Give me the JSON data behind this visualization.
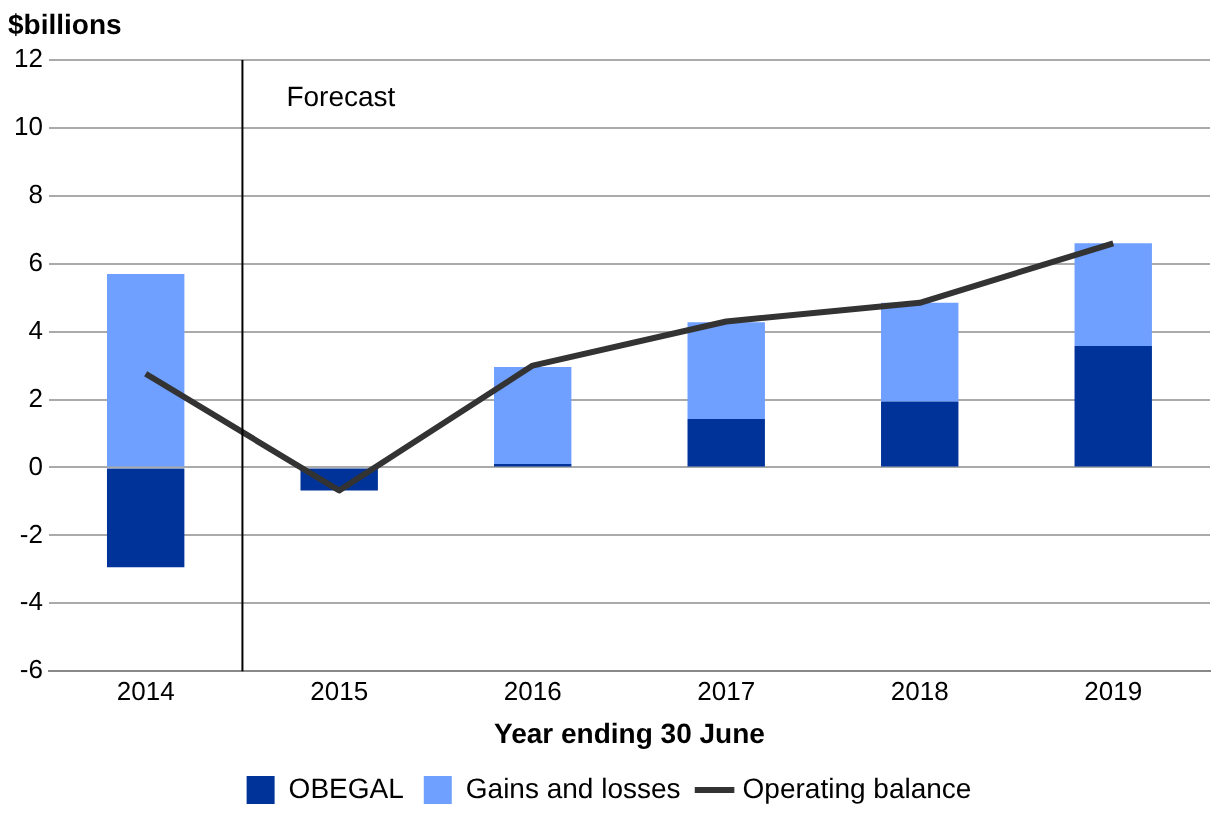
{
  "chart_data": {
    "type": "bar",
    "stacked": true,
    "xlabel": "Year ending 30 June",
    "ylabel": "$billions",
    "x": [
      2014,
      2015,
      2016,
      2017,
      2018,
      2019
    ],
    "xlim": [
      2013.5,
      2019.5
    ],
    "xticks": [
      2014,
      2015,
      2016,
      2017,
      2018,
      2019
    ],
    "ylim": [
      -6,
      12
    ],
    "yticks": [
      -6,
      -4,
      -2,
      0,
      2,
      4,
      6,
      8,
      10,
      12
    ],
    "grid": "y",
    "legend": "bottom",
    "series": [
      {
        "name": "OBEGAL",
        "color": "#003399",
        "values": [
          -2.94,
          -0.68,
          0.1,
          1.43,
          1.94,
          3.58
        ]
      },
      {
        "name": "Gains and losses",
        "color": "#6f9fff",
        "values": [
          5.7,
          null,
          2.86,
          2.85,
          2.91,
          3.02
        ]
      },
      {
        "name": "Operating balance",
        "type": "line",
        "color": "#333333",
        "values": [
          2.76,
          -0.68,
          3.0,
          4.3,
          4.85,
          6.6
        ]
      }
    ],
    "ref_lines": [
      {
        "axis": "x",
        "value": 2014.5,
        "label": "Forecast",
        "color": "#000000"
      }
    ]
  }
}
